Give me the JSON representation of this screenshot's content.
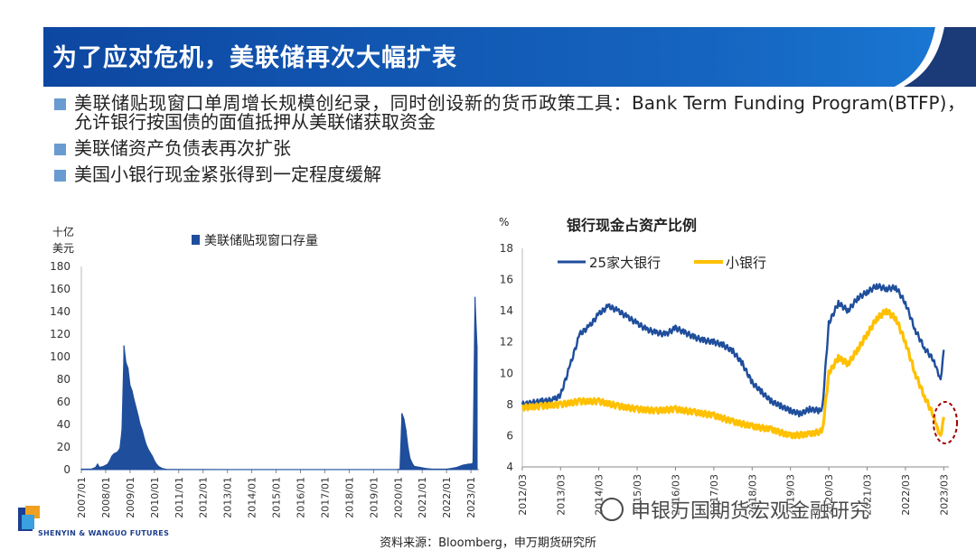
{
  "slide": {
    "title": "为了应对危机，美联储再次大幅扩表",
    "bullets": [
      "美联储贴现窗口单周增长规模创纪录，同时创设新的货币政策工具：Bank Term Funding Program(BTFP)，允许银行按国债的面值抵押从美联储获取资金",
      "美联储资产负债表再次扩张",
      "美国小银行现金紧张得到一定程度缓解"
    ],
    "source": "资料来源：Bloomberg，申万期货研究所",
    "logo_text": "SHENYIN & WANGUO FUTURES",
    "watermark": "申银万国期货宏观金融研究",
    "colors": {
      "banner": "#1565c0",
      "bullet": "#6a9bd0",
      "big_banks": "#1f4e9c",
      "small_banks": "#ffc000",
      "bar": "#1f4e9c",
      "circle": "#a00000"
    }
  },
  "chart_data": [
    {
      "type": "bar",
      "unit_label": [
        "十亿",
        "美元"
      ],
      "legend": "美联储贴现窗口存量",
      "ylim": [
        0,
        180
      ],
      "yticks": [
        0,
        20,
        40,
        60,
        80,
        100,
        120,
        140,
        160,
        180
      ],
      "xticks": [
        "2007/01",
        "2008/01",
        "2009/01",
        "2010/01",
        "2011/01",
        "2012/01",
        "2013/01",
        "2014/01",
        "2015/01",
        "2016/01",
        "2017/01",
        "2018/01",
        "2019/01",
        "2020/01",
        "2021/01",
        "2022/01",
        "2023/01"
      ],
      "points": [
        [
          "2007/01",
          0.5
        ],
        [
          "2007/06",
          0.5
        ],
        [
          "2007/08",
          2
        ],
        [
          "2007/09",
          5
        ],
        [
          "2007/10",
          2
        ],
        [
          "2007/12",
          3
        ],
        [
          "2008/01",
          4
        ],
        [
          "2008/02",
          5
        ],
        [
          "2008/03",
          8
        ],
        [
          "2008/04",
          12
        ],
        [
          "2008/05",
          14
        ],
        [
          "2008/06",
          15
        ],
        [
          "2008/07",
          16
        ],
        [
          "2008/08",
          19
        ],
        [
          "2008/09",
          35
        ],
        [
          "2008/10",
          105
        ],
        [
          "2008/10",
          110
        ],
        [
          "2008/11",
          95
        ],
        [
          "2008/12",
          90
        ],
        [
          "2009/01",
          75
        ],
        [
          "2009/02",
          70
        ],
        [
          "2009/03",
          62
        ],
        [
          "2009/04",
          55
        ],
        [
          "2009/05",
          48
        ],
        [
          "2009/06",
          40
        ],
        [
          "2009/07",
          35
        ],
        [
          "2009/08",
          28
        ],
        [
          "2009/09",
          22
        ],
        [
          "2009/10",
          18
        ],
        [
          "2009/11",
          15
        ],
        [
          "2009/12",
          12
        ],
        [
          "2010/01",
          8
        ],
        [
          "2010/02",
          5
        ],
        [
          "2010/03",
          3
        ],
        [
          "2010/05",
          1
        ],
        [
          "2010/07",
          0.3
        ],
        [
          "2011/01",
          0.2
        ],
        [
          "2015/01",
          0.1
        ],
        [
          "2019/12",
          0.1
        ],
        [
          "2020/01",
          0.2
        ],
        [
          "2020/02",
          0.5
        ],
        [
          "2020/03",
          50
        ],
        [
          "2020/04",
          45
        ],
        [
          "2020/05",
          35
        ],
        [
          "2020/06",
          20
        ],
        [
          "2020/07",
          10
        ],
        [
          "2020/08",
          6
        ],
        [
          "2020/09",
          3
        ],
        [
          "2020/12",
          2
        ],
        [
          "2021/03",
          1
        ],
        [
          "2021/06",
          0.5
        ],
        [
          "2022/01",
          0.5
        ],
        [
          "2022/03",
          1
        ],
        [
          "2022/06",
          2
        ],
        [
          "2022/09",
          4
        ],
        [
          "2022/12",
          5
        ],
        [
          "2023/01",
          5
        ],
        [
          "2023/02",
          6
        ],
        [
          "2023/03",
          153
        ],
        [
          "2023/04",
          110
        ]
      ]
    },
    {
      "type": "line",
      "title": "银行现金占资产比例",
      "unit_label": "%",
      "ylim": [
        4,
        18
      ],
      "yticks": [
        4,
        6,
        8,
        10,
        12,
        14,
        16,
        18
      ],
      "xticks": [
        "2012/03",
        "2013/03",
        "2014/03",
        "2015/03",
        "2016/03",
        "2017/03",
        "2018/03",
        "2019/03",
        "2020/03",
        "2021/03",
        "2022/03",
        "2023/03"
      ],
      "series": [
        {
          "name": "25家大银行",
          "color": "#1f4e9c",
          "points": [
            [
              "2012/03",
              8.0
            ],
            [
              "2012/09",
              8.2
            ],
            [
              "2013/01",
              8.3
            ],
            [
              "2013/03",
              8.6
            ],
            [
              "2013/06",
              10.5
            ],
            [
              "2013/09",
              12.5
            ],
            [
              "2013/12",
              13.0
            ],
            [
              "2014/03",
              13.8
            ],
            [
              "2014/06",
              14.3
            ],
            [
              "2014/09",
              14.0
            ],
            [
              "2014/12",
              13.6
            ],
            [
              "2015/03",
              13.2
            ],
            [
              "2015/06",
              12.8
            ],
            [
              "2015/09",
              12.6
            ],
            [
              "2015/12",
              12.5
            ],
            [
              "2016/03",
              12.9
            ],
            [
              "2016/06",
              12.6
            ],
            [
              "2016/09",
              12.3
            ],
            [
              "2016/12",
              12.1
            ],
            [
              "2017/03",
              12.0
            ],
            [
              "2017/06",
              11.8
            ],
            [
              "2017/09",
              11.4
            ],
            [
              "2017/12",
              10.6
            ],
            [
              "2018/03",
              9.4
            ],
            [
              "2018/06",
              8.8
            ],
            [
              "2018/09",
              8.2
            ],
            [
              "2018/12",
              7.9
            ],
            [
              "2019/03",
              7.6
            ],
            [
              "2019/06",
              7.4
            ],
            [
              "2019/09",
              7.7
            ],
            [
              "2019/12",
              7.6
            ],
            [
              "2020/01",
              7.8
            ],
            [
              "2020/03",
              13.2
            ],
            [
              "2020/06",
              14.5
            ],
            [
              "2020/09",
              14.0
            ],
            [
              "2020/12",
              14.8
            ],
            [
              "2021/03",
              15.2
            ],
            [
              "2021/06",
              15.6
            ],
            [
              "2021/09",
              15.4
            ],
            [
              "2021/12",
              15.5
            ],
            [
              "2022/03",
              14.5
            ],
            [
              "2022/06",
              12.8
            ],
            [
              "2022/09",
              11.6
            ],
            [
              "2022/12",
              10.8
            ],
            [
              "2023/01",
              10.2
            ],
            [
              "2023/02",
              9.6
            ],
            [
              "2023/03",
              11.5
            ]
          ]
        },
        {
          "name": "小银行",
          "color": "#ffc000",
          "points": [
            [
              "2012/03",
              7.8
            ],
            [
              "2012/09",
              7.9
            ],
            [
              "2013/03",
              8.0
            ],
            [
              "2013/09",
              8.2
            ],
            [
              "2014/03",
              8.2
            ],
            [
              "2014/09",
              7.9
            ],
            [
              "2015/03",
              7.7
            ],
            [
              "2015/09",
              7.6
            ],
            [
              "2016/03",
              7.7
            ],
            [
              "2016/09",
              7.5
            ],
            [
              "2017/03",
              7.3
            ],
            [
              "2017/09",
              6.9
            ],
            [
              "2018/03",
              6.6
            ],
            [
              "2018/09",
              6.4
            ],
            [
              "2019/03",
              6.0
            ],
            [
              "2019/09",
              6.1
            ],
            [
              "2020/01",
              6.3
            ],
            [
              "2020/03",
              10.0
            ],
            [
              "2020/06",
              11.0
            ],
            [
              "2020/09",
              10.6
            ],
            [
              "2020/12",
              11.5
            ],
            [
              "2021/03",
              12.5
            ],
            [
              "2021/06",
              13.5
            ],
            [
              "2021/09",
              14.0
            ],
            [
              "2021/12",
              13.5
            ],
            [
              "2022/03",
              12.0
            ],
            [
              "2022/06",
              10.0
            ],
            [
              "2022/09",
              8.5
            ],
            [
              "2022/12",
              7.2
            ],
            [
              "2023/01",
              6.5
            ],
            [
              "2023/02",
              6.0
            ],
            [
              "2023/03",
              7.2
            ]
          ]
        }
      ]
    }
  ]
}
